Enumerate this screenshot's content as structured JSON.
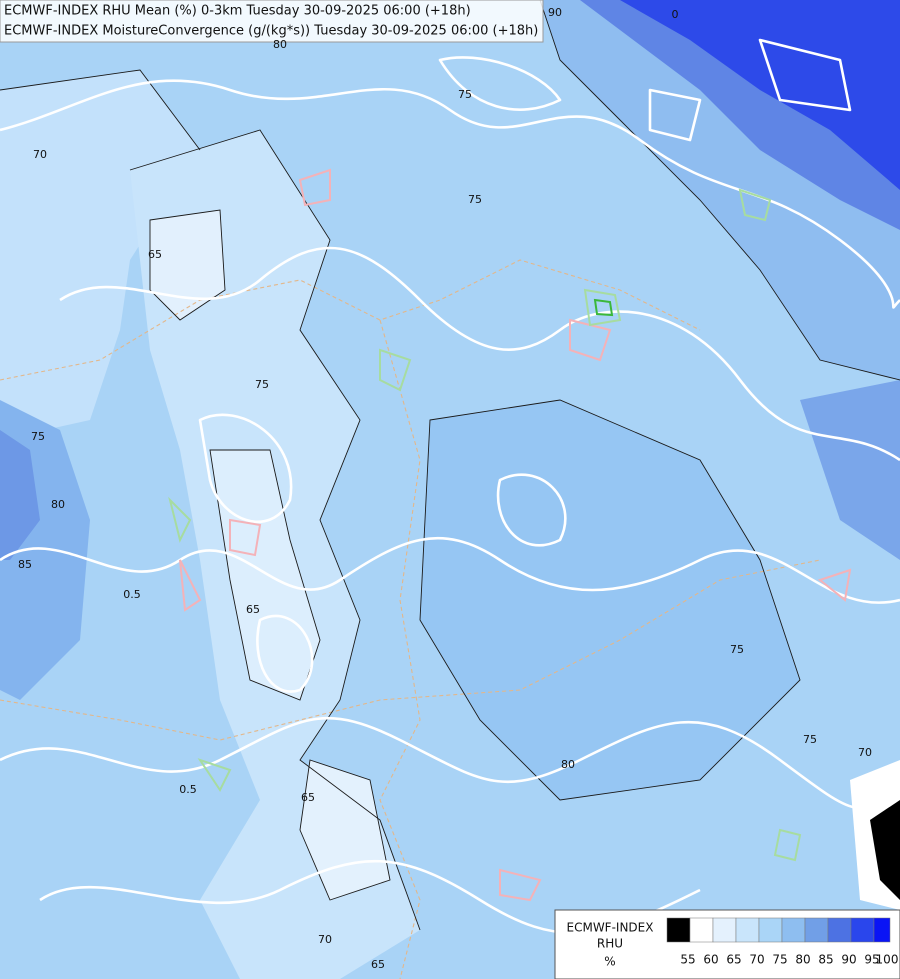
{
  "header": {
    "line1": "ECMWF-INDEX RHU Mean (%) 0-3km Tuesday 30-09-2025 06:00 (+18h)",
    "line2": "ECMWF-INDEX MoistureConvergence (g/(kg*s)) Tuesday 30-09-2025 06:00 (+18h)"
  },
  "contour_labels": [
    "90",
    "0",
    "80",
    "75",
    "75",
    "70",
    "65",
    "75",
    "75",
    "80",
    "85",
    "65",
    "75",
    "80",
    "65",
    "70",
    "65",
    "75",
    "70",
    "0.5",
    "0.5"
  ],
  "legend": {
    "title": "ECMWF-INDEX",
    "variable": "RHU",
    "unit": "%",
    "levels": [
      {
        "label": "55",
        "color": "#000000"
      },
      {
        "label": "60",
        "color": "#ffffff"
      },
      {
        "label": "65",
        "color": "#e4f1fd"
      },
      {
        "label": "70",
        "color": "#c9e5fb"
      },
      {
        "label": "75",
        "color": "#aad5f7"
      },
      {
        "label": "80",
        "color": "#8ebef0"
      },
      {
        "label": "85",
        "color": "#719fe7"
      },
      {
        "label": "90",
        "color": "#4d72e3"
      },
      {
        "label": "95",
        "color": "#2a46ec"
      },
      {
        "label": "100",
        "color": "#0a14f5"
      }
    ]
  }
}
